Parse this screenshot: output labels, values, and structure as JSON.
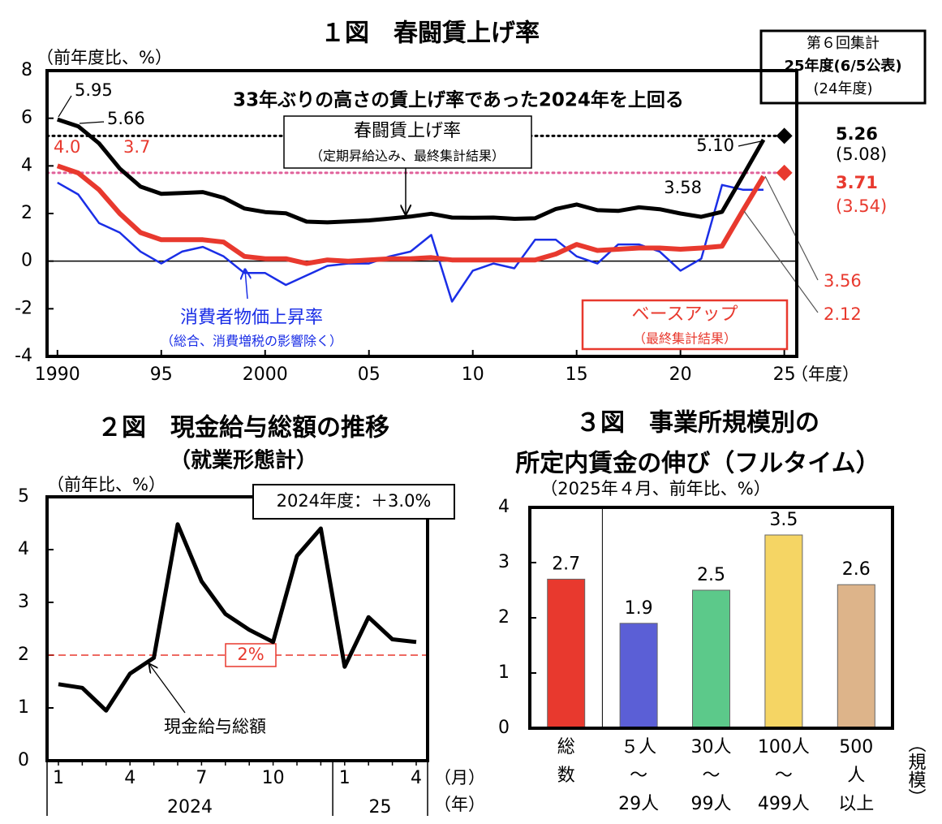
{
  "chart_data": [
    {
      "type": "line",
      "title": "１図　春闘賃上げ率",
      "y_label": "（前年度比、%）",
      "x_label": "（年度）",
      "annotation": "33年ぶりの高さの賃上げ率であった2024年を上回る",
      "info_box": [
        "第６回集計",
        "25年度(6/5公表)",
        "(24年度)"
      ],
      "x": [
        1990,
        1991,
        1992,
        1993,
        1994,
        1995,
        1996,
        1997,
        1998,
        1999,
        2000,
        2001,
        2002,
        2003,
        2004,
        2005,
        2006,
        2007,
        2008,
        2009,
        2010,
        2011,
        2012,
        2013,
        2014,
        2015,
        2016,
        2017,
        2018,
        2019,
        2020,
        2021,
        2022,
        2023,
        2024
      ],
      "xlim": [
        1989.5,
        2025.6
      ],
      "xticks": [
        1990,
        {
          "value": 1995,
          "label": "95"
        },
        2000,
        {
          "value": 2005,
          "label": "05"
        },
        {
          "value": 2010,
          "label": "10"
        },
        {
          "value": 2015,
          "label": "15"
        },
        {
          "value": 2020,
          "label": "20"
        },
        {
          "value": 2025,
          "label": "25"
        }
      ],
      "ylim": [
        -4,
        8
      ],
      "yticks": [
        -4,
        -2,
        0,
        2,
        4,
        6,
        8
      ],
      "zero_line": true,
      "series": [
        {
          "name": "春闘賃上げ率",
          "note": "（定期昇給込み、最終集計結果）",
          "color": "#000000",
          "values": [
            5.95,
            5.66,
            4.95,
            3.89,
            3.13,
            2.83,
            2.86,
            2.9,
            2.66,
            2.21,
            2.06,
            2.01,
            1.66,
            1.63,
            1.67,
            1.71,
            1.79,
            1.87,
            1.99,
            1.83,
            1.82,
            1.83,
            1.78,
            1.8,
            2.19,
            2.38,
            2.14,
            2.11,
            2.26,
            2.18,
            2.0,
            1.86,
            2.07,
            3.58,
            5.1
          ],
          "value_labels": [
            "5.95",
            "5.66",
            null,
            null,
            null,
            null,
            null,
            null,
            null,
            null,
            null,
            null,
            null,
            null,
            null,
            null,
            null,
            null,
            null,
            null,
            null,
            null,
            null,
            null,
            null,
            null,
            null,
            null,
            null,
            null,
            null,
            null,
            null,
            "3.58",
            "5.10"
          ]
        },
        {
          "name": "ベースアップ",
          "note": "（最終集計結果）",
          "color": "#e8392e",
          "values": [
            4.0,
            3.7,
            3.0,
            2.0,
            1.2,
            0.9,
            0.9,
            0.9,
            0.8,
            0.2,
            0.1,
            0.1,
            -0.1,
            0.05,
            0.0,
            0.05,
            0.1,
            0.1,
            0.15,
            0.05,
            0.05,
            0.05,
            0.05,
            0.05,
            0.3,
            0.7,
            0.45,
            0.5,
            0.55,
            0.55,
            0.5,
            0.55,
            0.63,
            2.12,
            3.56
          ],
          "value_labels": [
            "4.0",
            "3.7",
            null,
            null,
            null,
            null,
            null,
            null,
            null,
            null,
            null,
            null,
            null,
            null,
            null,
            null,
            null,
            null,
            null,
            null,
            null,
            null,
            null,
            null,
            null,
            null,
            null,
            null,
            null,
            null,
            null,
            null,
            null,
            "2.12",
            "3.56"
          ]
        },
        {
          "name": "消費者物価上昇率",
          "note": "（総合、消費増税の影響除く）",
          "color": "#1a2ee6",
          "values": [
            3.3,
            2.8,
            1.6,
            1.2,
            0.4,
            -0.1,
            0.4,
            0.6,
            0.2,
            -0.5,
            -0.5,
            -1.0,
            -0.6,
            -0.2,
            -0.1,
            -0.1,
            0.2,
            0.4,
            1.1,
            -1.7,
            -0.4,
            -0.1,
            -0.3,
            0.9,
            0.9,
            0.2,
            -0.1,
            0.7,
            0.7,
            0.4,
            -0.4,
            0.1,
            3.2,
            3.0,
            3.0
          ]
        }
      ],
      "latest": [
        {
          "x": 2025,
          "y": 5.26,
          "prev_label": "(5.08)",
          "color": "#000000",
          "line_color": "#000000"
        },
        {
          "x": 2025,
          "y": 3.71,
          "prev_label": "(3.54)",
          "color": "#e8392e",
          "line_color": "#e0609a"
        }
      ]
    },
    {
      "type": "line",
      "title": "２図　現金給与総額の推移",
      "subtitle": "（就業形態計）",
      "y_label": "（前年比、%）",
      "x_label": "（月）",
      "x_group_label": "（年）",
      "box": "2024年度：＋3.0%",
      "categories": [
        "1",
        null,
        null,
        "4",
        null,
        null,
        "7",
        null,
        null,
        "10",
        null,
        null,
        "1",
        null,
        null,
        "4"
      ],
      "groups": [
        {
          "label": "2024",
          "count": 12
        },
        {
          "label": "25",
          "count": 4
        }
      ],
      "ylim": [
        0,
        5
      ],
      "yticks": [
        0,
        1,
        2,
        3,
        4,
        5
      ],
      "reference": {
        "value": 2,
        "label": "2%",
        "color": "#e8392e"
      },
      "series": [
        {
          "name": "現金給与総額",
          "color": "#000000",
          "values": [
            1.45,
            1.38,
            0.95,
            1.65,
            1.95,
            4.48,
            3.4,
            2.78,
            2.48,
            2.25,
            3.88,
            4.4,
            1.78,
            2.72,
            2.3,
            2.25
          ]
        }
      ]
    },
    {
      "type": "bar",
      "title": [
        "３図　事業所規模別の",
        "所定内賃金の伸び（フルタイム）"
      ],
      "subtitle": "（2025年４月、前年比、%）",
      "x_label": "（規模）",
      "categories": [
        [
          "総",
          "数"
        ],
        [
          "５人",
          "～",
          "29人"
        ],
        [
          "30人",
          "～",
          "99人"
        ],
        [
          "100人",
          "～",
          "499人"
        ],
        [
          "500",
          "人",
          "以上"
        ]
      ],
      "values": [
        2.7,
        1.9,
        2.5,
        3.5,
        2.6
      ],
      "colors": [
        "#e8392e",
        "#5b5fd6",
        "#5cc98a",
        "#f5d564",
        "#ddb48a"
      ],
      "ylim": [
        0,
        4
      ],
      "yticks": [
        0,
        1,
        2,
        3,
        4
      ]
    }
  ]
}
